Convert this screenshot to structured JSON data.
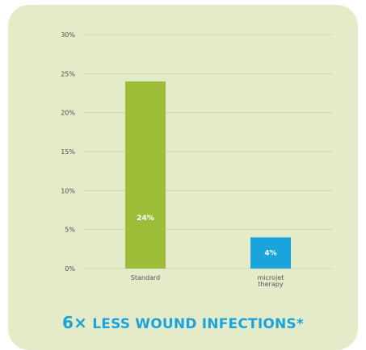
{
  "colors": {
    "card_background": "#e4ebc9",
    "standard_bar": "#9ebe3a",
    "microjet_bar": "#1aa3dd",
    "headline": "#1aa3dd"
  },
  "chart_data": {
    "type": "bar",
    "categories": [
      [
        "Standard"
      ],
      [
        "microjet",
        "therapy"
      ]
    ],
    "values": [
      24,
      4
    ],
    "data_labels": [
      "24%",
      "4%"
    ],
    "bar_colors": [
      "#9ebe3a",
      "#1aa3dd"
    ],
    "ylim": [
      0,
      30
    ],
    "yticks": [
      0,
      5,
      10,
      15,
      20,
      25,
      30
    ],
    "ytick_labels": [
      "0%",
      "5%",
      "10%",
      "15%",
      "20%",
      "25%",
      "30%"
    ],
    "grid": true
  },
  "headline": {
    "multiplier": "6×",
    "text": "LESS WOUND INFECTIONS*"
  }
}
